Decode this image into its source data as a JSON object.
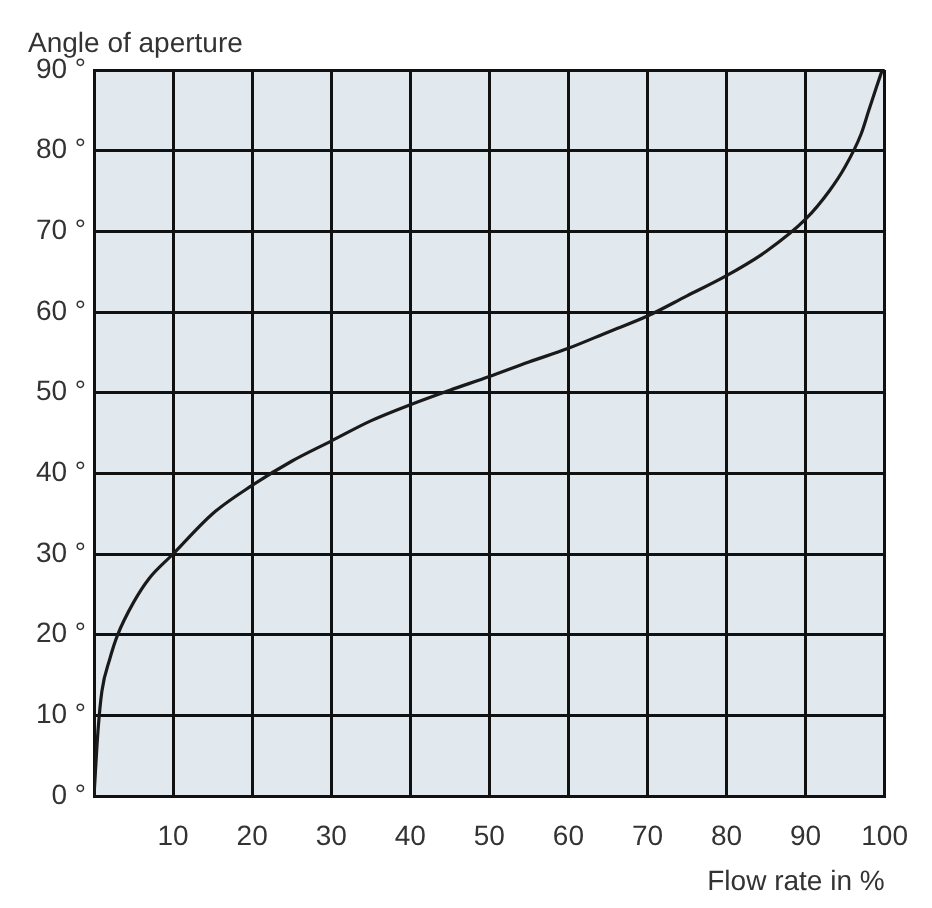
{
  "chart_data": {
    "type": "line",
    "xlabel": "Flow rate in %",
    "ylabel": "Angle of aperture",
    "x": [
      0,
      0.5,
      1,
      2,
      3,
      5,
      7,
      10,
      15,
      20,
      25,
      30,
      35,
      40,
      45,
      50,
      55,
      60,
      65,
      70,
      75,
      80,
      85,
      90,
      93,
      95,
      97,
      98,
      99,
      99.7
    ],
    "series": [
      {
        "color": "#1a1a1a",
        "values": [
          0,
          8,
          13,
          17,
          20,
          24,
          27,
          30,
          35,
          38.5,
          41.5,
          44,
          46.5,
          48.5,
          50.3,
          52,
          53.8,
          55.5,
          57.5,
          59.5,
          62,
          64.5,
          67.5,
          71.5,
          75,
          78,
          82,
          85,
          88,
          90
        ]
      }
    ],
    "xlim": [
      0,
      100
    ],
    "xticks": [
      10,
      20,
      30,
      40,
      50,
      60,
      70,
      80,
      90,
      100
    ],
    "ylim": [
      0,
      90
    ],
    "yticks": [
      {
        "value": 0,
        "label": "0 °"
      },
      {
        "value": 10,
        "label": "10 °"
      },
      {
        "value": 20,
        "label": "20 °"
      },
      {
        "value": 30,
        "label": "30 °"
      },
      {
        "value": 40,
        "label": "40 °"
      },
      {
        "value": 50,
        "label": "50 °"
      },
      {
        "value": 60,
        "label": "60 °"
      },
      {
        "value": 70,
        "label": "70 °"
      },
      {
        "value": 80,
        "label": "80 °"
      },
      {
        "value": 90,
        "label": "90 °"
      }
    ],
    "grid": true,
    "legend": false,
    "marker": "none",
    "line_style": "solid"
  }
}
